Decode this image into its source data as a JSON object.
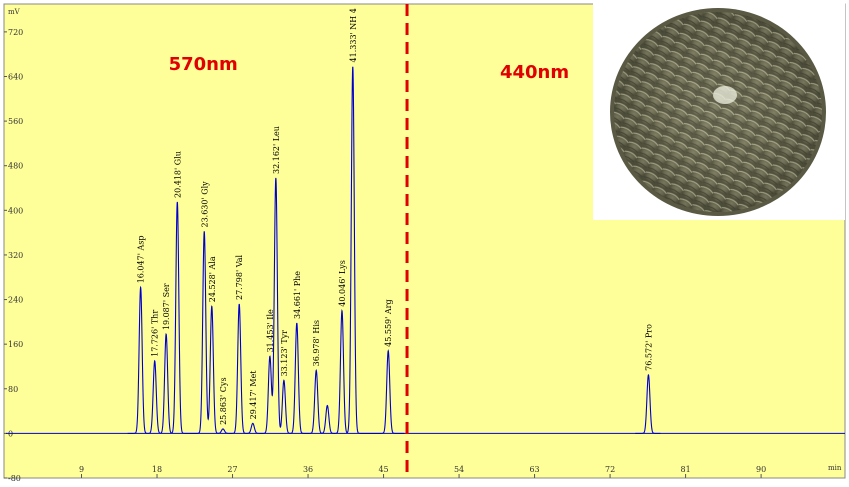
{
  "chart_data": {
    "type": "line",
    "xlabel": "min",
    "ylabel": "mV",
    "xlim": [
      0,
      100
    ],
    "ylim": [
      -80,
      770
    ],
    "xticks": [
      9,
      18,
      27,
      36,
      45,
      54,
      63,
      72,
      81,
      90
    ],
    "yticks": [
      -80,
      0,
      80,
      160,
      240,
      320,
      400,
      480,
      560,
      640,
      720
    ],
    "region_divider_x": 47.8,
    "regions": [
      {
        "label": "570nm",
        "x": 23.5
      },
      {
        "label": "440nm",
        "x": 63
      }
    ],
    "colors": {
      "background": "#ffff99",
      "trace": "#0000cc",
      "divider": "#e00000",
      "region_text": "#e00000"
    },
    "peaks": [
      {
        "label": "16.047' Asp",
        "x": 16.047,
        "y": 262
      },
      {
        "label": "17.726' Thr",
        "x": 17.726,
        "y": 130
      },
      {
        "label": "19.087' Ser",
        "x": 19.087,
        "y": 178
      },
      {
        "label": "20.418' Glu",
        "x": 20.418,
        "y": 415
      },
      {
        "label": "23.630' Gly",
        "x": 23.63,
        "y": 362
      },
      {
        "label": "24.528' Ala",
        "x": 24.528,
        "y": 228
      },
      {
        "label": "25.863' Cys",
        "x": 25.863,
        "y": 8
      },
      {
        "label": "27.798' Val",
        "x": 27.798,
        "y": 232
      },
      {
        "label": "29.417' Met",
        "x": 29.417,
        "y": 18
      },
      {
        "label": "31.453' Ile",
        "x": 31.453,
        "y": 138
      },
      {
        "label": "32.162' Leu",
        "x": 32.162,
        "y": 458
      },
      {
        "label": "33.123' Tyr",
        "x": 33.123,
        "y": 95
      },
      {
        "label": "34.661' Phe",
        "x": 34.661,
        "y": 198
      },
      {
        "label": "36.978' His",
        "x": 36.978,
        "y": 113
      },
      {
        "label": "40.046' Lys",
        "x": 40.046,
        "y": 220
      },
      {
        "label": "41.333' NH 4",
        "x": 41.333,
        "y": 658
      },
      {
        "label": "45.559' Arg",
        "x": 45.559,
        "y": 148
      },
      {
        "label": "76.572' Pro",
        "x": 76.572,
        "y": 105
      }
    ],
    "unlabeled_peaks": [
      {
        "x": 38.3,
        "y": 50
      }
    ]
  },
  "image": {
    "alt": "tea-cake-photo"
  }
}
